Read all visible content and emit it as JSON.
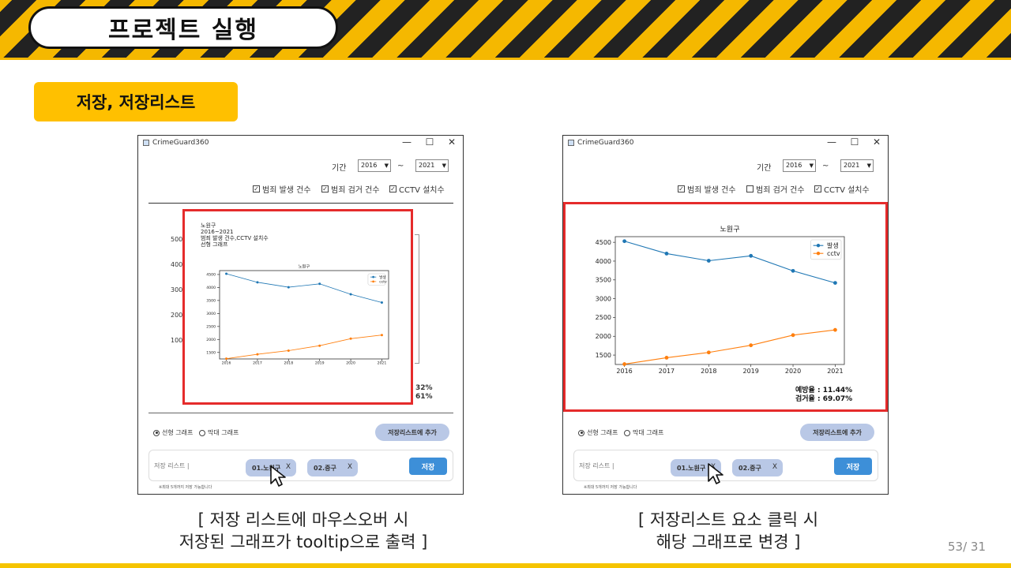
{
  "slide": {
    "title": "프로젝트 실행",
    "section": "저장, 저장리스트",
    "caption_left": [
      "[ 저장 리스트에 마우스오버 시",
      "저장된 그래프가 tooltip으로 출력 ]"
    ],
    "caption_right": [
      "[ 저장리스트 요소 클릭 시",
      "해당 그래프로 변경 ]"
    ],
    "page_number": "53/ 31"
  },
  "window": {
    "title": "CrimeGuard360",
    "minimize": "—",
    "maximize": "☐",
    "close": "✕",
    "period_label": "기간",
    "year_from": "2016",
    "tilde": "~",
    "year_to": "2021",
    "radio_line": "선형 그래프",
    "radio_bar": "막대 그래프",
    "add_button": "저장리스트에 추가",
    "save_list_label": "저장 리스트 |",
    "save_button": "저장",
    "hint": "※최대 5개까지 저장 가능합니다"
  },
  "left_window": {
    "checkboxes": [
      {
        "label": "범죄 발생 건수",
        "checked": true
      },
      {
        "label": "범죄 검거 건수",
        "checked": true
      },
      {
        "label": "CCTV 설치수",
        "checked": true
      }
    ],
    "chips": [
      {
        "label": "01.노원구",
        "x": "X"
      },
      {
        "label": "02.중구",
        "x": "X"
      }
    ],
    "bg_axis_ticks": [
      "5000",
      "4000",
      "3000",
      "2000",
      "1000"
    ],
    "bg_rates": [
      "32%",
      "61%"
    ],
    "tooltip_lines": [
      "노원구",
      "2016~2021",
      "범죄 발생 건수,CCTV 설치수",
      "선형 그래프"
    ]
  },
  "right_window": {
    "checkboxes": [
      {
        "label": "범죄 발생 건수",
        "checked": true
      },
      {
        "label": "범죄 검거 건수",
        "checked": false
      },
      {
        "label": "CCTV 설치수",
        "checked": true
      }
    ],
    "chips": [
      {
        "label": "01.노원구",
        "x": "X"
      },
      {
        "label": "02.중구",
        "x": "X"
      }
    ],
    "rates": [
      "예방율 : 11.44%",
      "검거율 : 69.07%"
    ]
  },
  "chart_data": [
    {
      "type": "line",
      "title": "노원구",
      "x": [
        2016,
        2017,
        2018,
        2019,
        2020,
        2021
      ],
      "x_tick_labels": [
        "2016",
        "2017",
        "2018",
        "2019",
        "2020",
        "2021"
      ],
      "series": [
        {
          "name": "발생",
          "values": [
            4530,
            4200,
            4010,
            4140,
            3740,
            3420
          ],
          "color": "#1f77b4"
        },
        {
          "name": "cctv",
          "values": [
            1260,
            1430,
            1570,
            1760,
            2030,
            2170
          ],
          "color": "#ff7f0e"
        }
      ],
      "ylim": [
        1250,
        4650
      ],
      "y_ticks": [
        1500,
        2000,
        2500,
        3000,
        3500,
        4000,
        4500
      ],
      "legend": "top-right",
      "grid": false
    }
  ]
}
